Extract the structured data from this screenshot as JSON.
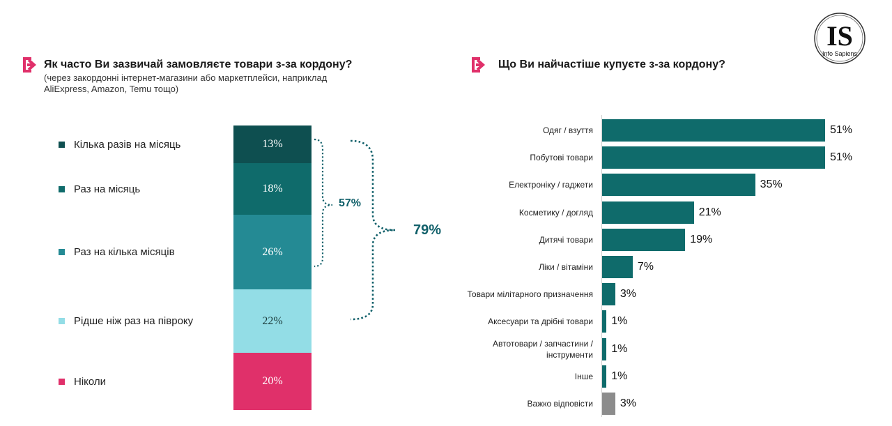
{
  "logo": {
    "text": "IS",
    "subtitle": "Info Sapiens"
  },
  "left_question": {
    "title": "Як часто Ви зазвичай замовляєте товари з-за кордону?",
    "subtitle": "(через закордонні інтернет-магазини або маркетплейси, наприклад AliExpress, Amazon, Temu тощо)"
  },
  "right_question": {
    "title": "Що Ви найчастіше купуєте з-за кордону?"
  },
  "colors": {
    "accent": "#e0306a",
    "dark_teal": "#0e4f50",
    "teal": "#0f6b6b",
    "mid_teal": "#248a94",
    "light_teal": "#93dde6",
    "pink": "#e0306a",
    "gray": "#8c8c8c"
  },
  "chart_data": [
    {
      "type": "bar",
      "stacked": true,
      "orientation": "vertical",
      "categories": [
        "Кілька разів на місяць",
        "Раз на місяць",
        "Раз на кілька місяців",
        "Рідше ніж раз на півроку",
        "Ніколи"
      ],
      "values": [
        13,
        18,
        26,
        22,
        20
      ],
      "labels": [
        "13%",
        "18%",
        "26%",
        "22%",
        "20%"
      ],
      "colors": [
        "#0e4f50",
        "#0f6b6b",
        "#248a94",
        "#93dde6",
        "#e0306a"
      ],
      "text_colors": [
        "#ffffff",
        "#ffffff",
        "#ffffff",
        "#1a3a3a",
        "#ffffff"
      ],
      "brackets": [
        {
          "label": "57%",
          "from": 0,
          "to": 2
        },
        {
          "label": "79%",
          "from": 0,
          "to": 3
        }
      ],
      "legend": "left"
    },
    {
      "type": "bar",
      "orientation": "horizontal",
      "categories": [
        "Одяг / взуття",
        "Побутові товари",
        "Електроніку / гаджети",
        "Косметику / догляд",
        "Дитячі товари",
        "Ліки / вітаміни",
        "Товари мілітарного призначення",
        "Аксесуари та дрібні товари",
        "Автотовари / запчастини / інструменти",
        "Інше",
        "Важко відповісти"
      ],
      "values": [
        51,
        51,
        35,
        21,
        19,
        7,
        3,
        1,
        1,
        1,
        3
      ],
      "labels": [
        "51%",
        "51%",
        "35%",
        "21%",
        "19%",
        "7%",
        "3%",
        "1%",
        "1%",
        "1%",
        "3%"
      ],
      "colors": [
        "#0f6b6b",
        "#0f6b6b",
        "#0f6b6b",
        "#0f6b6b",
        "#0f6b6b",
        "#0f6b6b",
        "#0f6b6b",
        "#0f6b6b",
        "#0f6b6b",
        "#0f6b6b",
        "#8c8c8c"
      ],
      "xlim": [
        0,
        51
      ]
    }
  ]
}
